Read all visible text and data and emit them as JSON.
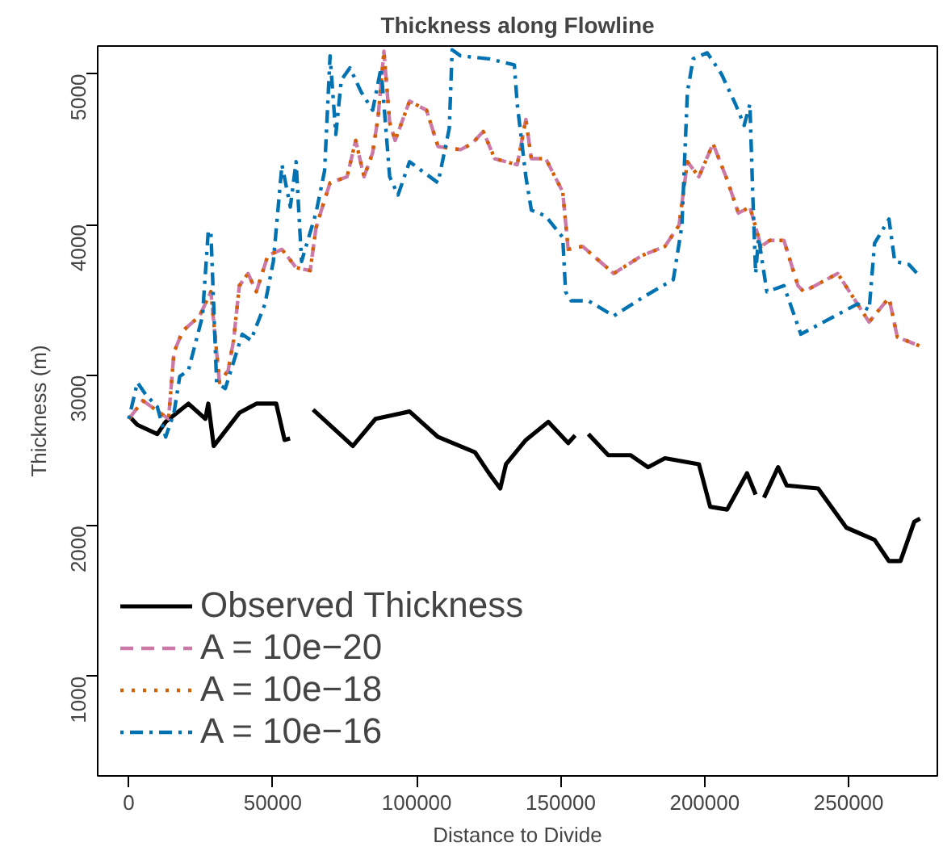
{
  "chart_data": {
    "type": "line",
    "title": "Thickness along Flowline",
    "xlabel": "Distance to Divide",
    "ylabel": "Thickness (m)",
    "xlim": [
      -10800,
      280800
    ],
    "ylim": [
      340,
      5185
    ],
    "xticks": [
      0,
      50000,
      100000,
      150000,
      200000,
      250000
    ],
    "yticks": [
      1000,
      2000,
      3000,
      4000,
      5000
    ],
    "grid": false,
    "legend": "bottom left",
    "series": [
      {
        "name": "Observed Thickness",
        "color": "#000000",
        "line_style": "solid",
        "x": [
          0,
          3000,
          9900,
          12800,
          20700,
          26600,
          27600,
          29500,
          38400,
          44300,
          51200,
          54100,
          56000,
          58100,
          64000,
          77800,
          85700,
          97500,
          107400,
          120200,
          125100,
          129000,
          131000,
          137900,
          145700,
          152600,
          155000,
          157000,
          159600,
          166500,
          174300,
          180300,
          186200,
          198000,
          201900,
          207800,
          214700,
          217700,
          219000,
          220600,
          225500,
          228500,
          239400,
          249200,
          259000,
          264000,
          268000,
          272800,
          274800
        ],
        "values": [
          2730,
          2670,
          2609,
          2690,
          2811,
          2710,
          2811,
          2530,
          2750,
          2811,
          2811,
          2570,
          2580,
          null,
          2771,
          2530,
          2710,
          2759,
          2590,
          2489,
          2349,
          2248,
          2409,
          2570,
          2690,
          2549,
          2600,
          null,
          2609,
          2469,
          2469,
          2389,
          2449,
          2409,
          2127,
          2108,
          2349,
          2208,
          null,
          2187,
          2389,
          2268,
          2248,
          1988,
          1907,
          1766,
          1766,
          2027,
          2048
        ]
      },
      {
        "name": "A = 10e−20",
        "color": "#cc79a7",
        "line_style": "dashed",
        "x": [
          0,
          4900,
          13800,
          15700,
          18700,
          24600,
          28500,
          31500,
          34500,
          36400,
          38400,
          41400,
          44300,
          48300,
          53200,
          58100,
          63000,
          65000,
          66900,
          69900,
          75800,
          78800,
          81700,
          84700,
          86600,
          88600,
          90600,
          92500,
          97500,
          103400,
          107400,
          115200,
          119200,
          123100,
          127100,
          134900,
          137900,
          139800,
          144800,
          150700,
          152600,
          157600,
          168400,
          178300,
          186200,
          191100,
          194000,
          198000,
          202900,
          207800,
          211700,
          215700,
          219600,
          222600,
          227500,
          232400,
          234400,
          246200,
          257100,
          264000,
          266900,
          274800
        ],
        "values": [
          2710,
          2831,
          2710,
          3152,
          3293,
          3393,
          3554,
          2952,
          3031,
          3232,
          3594,
          3675,
          3554,
          3795,
          3835,
          3714,
          3694,
          3976,
          4096,
          4277,
          4317,
          4558,
          4317,
          4477,
          4718,
          5150,
          4678,
          4558,
          4819,
          4759,
          4518,
          4497,
          4537,
          4618,
          4437,
          4397,
          4698,
          4437,
          4437,
          4217,
          3835,
          3855,
          3675,
          3795,
          3855,
          3995,
          4417,
          4317,
          4537,
          4297,
          4076,
          4116,
          3855,
          3895,
          3895,
          3594,
          3554,
          3675,
          3353,
          3514,
          3253,
          3193
        ]
      },
      {
        "name": "A = 10e−18",
        "color": "#d55e00",
        "line_style": "dotted",
        "x": [
          0,
          4900,
          13800,
          15700,
          18700,
          24600,
          28500,
          31500,
          34500,
          36400,
          38400,
          41400,
          44300,
          48300,
          53200,
          58100,
          63000,
          65000,
          66900,
          69900,
          75800,
          78800,
          81700,
          84700,
          86600,
          88600,
          90600,
          92500,
          97500,
          103400,
          107400,
          115200,
          119200,
          123100,
          127100,
          134900,
          137900,
          139800,
          144800,
          150700,
          152600,
          157600,
          168400,
          178300,
          186200,
          191100,
          194000,
          198000,
          202900,
          207800,
          211700,
          215700,
          219600,
          222600,
          227500,
          232400,
          234400,
          246200,
          257100,
          264000,
          266900,
          274800
        ],
        "values": [
          2710,
          2831,
          2710,
          3152,
          3293,
          3393,
          3554,
          2952,
          3031,
          3232,
          3594,
          3675,
          3554,
          3795,
          3835,
          3714,
          3694,
          3976,
          4096,
          4277,
          4317,
          4558,
          4317,
          4477,
          4718,
          5150,
          4678,
          4558,
          4819,
          4759,
          4518,
          4497,
          4537,
          4618,
          4437,
          4397,
          4698,
          4437,
          4437,
          4217,
          3835,
          3855,
          3675,
          3795,
          3855,
          3995,
          4417,
          4317,
          4537,
          4297,
          4076,
          4116,
          3855,
          3895,
          3895,
          3594,
          3554,
          3675,
          3353,
          3514,
          3253,
          3193
        ]
      },
      {
        "name": "A = 10e−16",
        "color": "#0072b2",
        "line_style": "dashdot",
        "x": [
          0,
          3000,
          5900,
          9900,
          12800,
          15700,
          17700,
          20700,
          25600,
          27600,
          28500,
          30500,
          33500,
          39400,
          42400,
          47300,
          50200,
          53200,
          56100,
          58100,
          60000,
          65000,
          68000,
          69900,
          71900,
          73800,
          76800,
          80700,
          84700,
          87600,
          90600,
          93500,
          97500,
          107400,
          111300,
          112300,
          115200,
          125100,
          133900,
          134900,
          137900,
          139800,
          144800,
          150700,
          151700,
          153600,
          159600,
          168400,
          178300,
          189100,
          192100,
          194000,
          196000,
          200900,
          205800,
          210700,
          213700,
          215700,
          216700,
          217700,
          218700,
          221600,
          227500,
          233400,
          241300,
          253100,
          257100,
          259000,
          264000,
          266000,
          270900,
          273800
        ],
        "values": [
          2710,
          2952,
          2871,
          2790,
          2590,
          2750,
          2992,
          3031,
          3393,
          3956,
          3956,
          2952,
          2911,
          3272,
          3232,
          3473,
          3755,
          4397,
          4116,
          4417,
          3755,
          4076,
          4357,
          5120,
          4598,
          4959,
          5040,
          4880,
          4759,
          5040,
          4317,
          4196,
          4417,
          4277,
          4638,
          5160,
          5120,
          5100,
          5060,
          4799,
          4317,
          4096,
          4056,
          3915,
          3554,
          3494,
          3494,
          3393,
          3514,
          3634,
          3995,
          4880,
          5100,
          5140,
          5000,
          4799,
          4658,
          4799,
          4196,
          3675,
          3915,
          3554,
          3594,
          3272,
          3353,
          3473,
          3433,
          3875,
          4036,
          3755,
          3735,
          3675
        ]
      }
    ]
  }
}
